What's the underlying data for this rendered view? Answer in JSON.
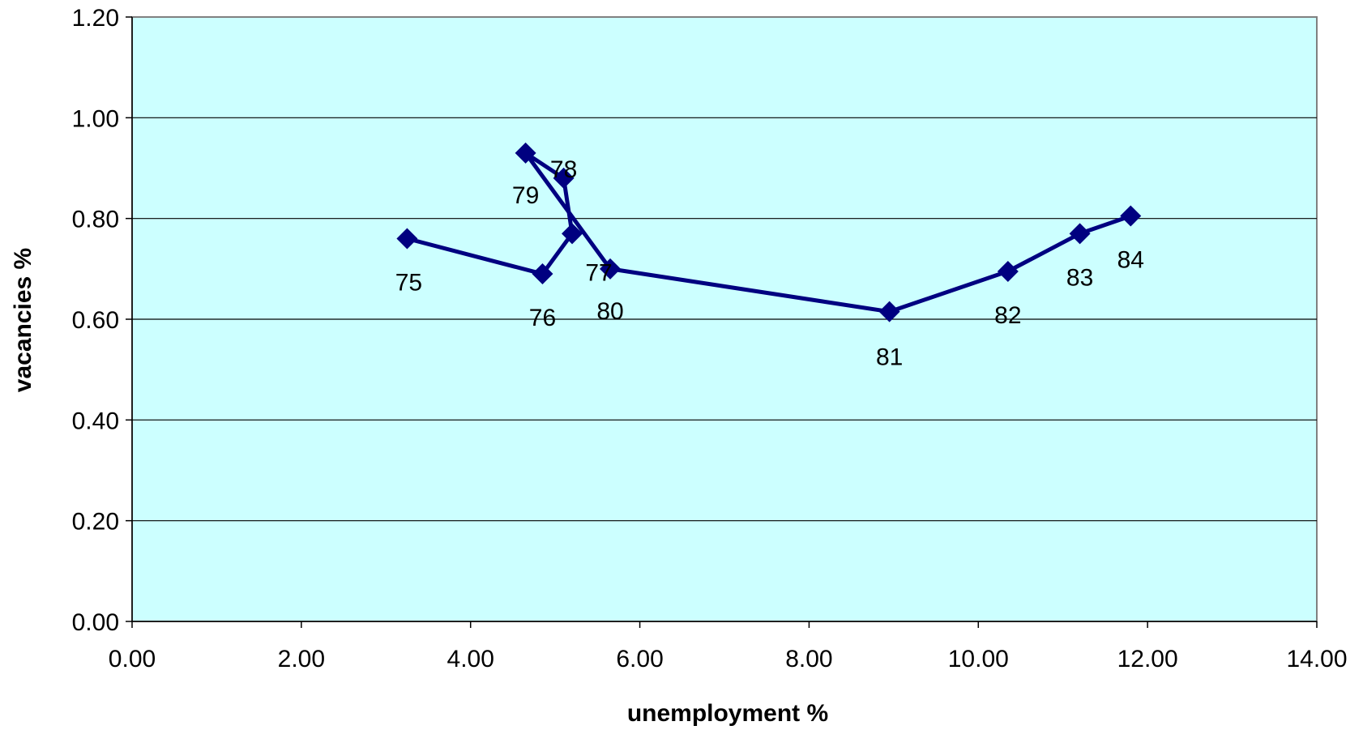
{
  "chart_data": {
    "type": "scatter",
    "title": "",
    "xlabel": "unemployment %",
    "ylabel": "vacancies %",
    "xlim": [
      0,
      14
    ],
    "ylim": [
      0,
      1.2
    ],
    "x_ticks": [
      "0.00",
      "2.00",
      "4.00",
      "6.00",
      "8.00",
      "10.00",
      "12.00",
      "14.00"
    ],
    "y_ticks": [
      "0.00",
      "0.20",
      "0.40",
      "0.60",
      "0.80",
      "1.00",
      "1.20"
    ],
    "grid": "horizontal",
    "legend": "none",
    "plot_background": "#ccffff",
    "series_color": "#000080",
    "connected": true,
    "series": [
      {
        "points": [
          {
            "label": "75",
            "x": 3.25,
            "y": 0.76
          },
          {
            "label": "76",
            "x": 4.85,
            "y": 0.69
          },
          {
            "label": "77",
            "x": 5.2,
            "y": 0.77
          },
          {
            "label": "78",
            "x": 5.1,
            "y": 0.88
          },
          {
            "label": "79",
            "x": 4.65,
            "y": 0.93
          },
          {
            "label": "80",
            "x": 5.65,
            "y": 0.7
          },
          {
            "label": "81",
            "x": 8.95,
            "y": 0.615
          },
          {
            "label": "82",
            "x": 10.35,
            "y": 0.695
          },
          {
            "label": "83",
            "x": 11.2,
            "y": 0.77
          },
          {
            "label": "84",
            "x": 11.8,
            "y": 0.805
          }
        ]
      }
    ]
  }
}
